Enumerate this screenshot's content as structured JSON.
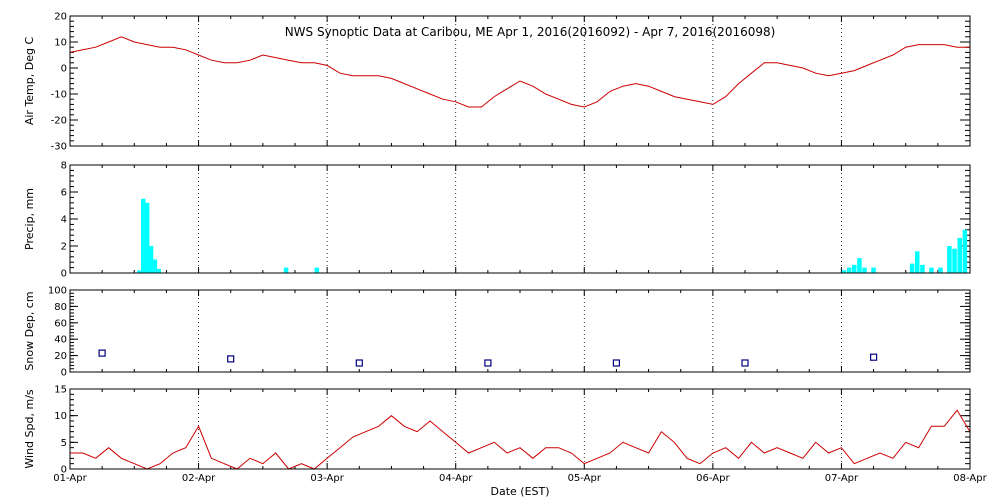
{
  "chart_data": {
    "type": "multi-panel time series",
    "title": "NWS Synoptic Data at Caribou, ME   Apr  1, 2016(2016092) - Apr  7, 2016(2016098)",
    "xlabel": "Date (EST)",
    "x_range_days": [
      0,
      7
    ],
    "x_ticks": [
      "01-Apr",
      "02-Apr",
      "03-Apr",
      "04-Apr",
      "05-Apr",
      "06-Apr",
      "07-Apr",
      "08-Apr"
    ],
    "panels": [
      {
        "key": "temp",
        "type": "line",
        "ylabel": "Air Temp, Deg C",
        "ylim": [
          -30,
          20
        ],
        "yticks": [
          -30,
          -20,
          -10,
          0,
          10,
          20
        ],
        "color": "#cc0000",
        "x": [
          0,
          0.1,
          0.2,
          0.3,
          0.4,
          0.5,
          0.6,
          0.7,
          0.8,
          0.9,
          1.0,
          1.1,
          1.2,
          1.3,
          1.4,
          1.5,
          1.6,
          1.7,
          1.8,
          1.9,
          2.0,
          2.1,
          2.2,
          2.3,
          2.4,
          2.5,
          2.6,
          2.7,
          2.8,
          2.9,
          3.0,
          3.1,
          3.2,
          3.3,
          3.4,
          3.5,
          3.6,
          3.7,
          3.8,
          3.9,
          4.0,
          4.1,
          4.2,
          4.3,
          4.4,
          4.5,
          4.6,
          4.7,
          4.8,
          4.9,
          5.0,
          5.1,
          5.2,
          5.3,
          5.4,
          5.5,
          5.6,
          5.7,
          5.8,
          5.9,
          6.0,
          6.1,
          6.2,
          6.3,
          6.4,
          6.5,
          6.6,
          6.7,
          6.8,
          6.9,
          7.0
        ],
        "values": [
          6,
          7,
          8,
          10,
          12,
          10,
          9,
          8,
          8,
          7,
          5,
          3,
          2,
          2,
          3,
          5,
          4,
          3,
          2,
          2,
          1,
          -2,
          -3,
          -3,
          -3,
          -4,
          -6,
          -8,
          -10,
          -12,
          -13,
          -15,
          -15,
          -11,
          -8,
          -5,
          -7,
          -10,
          -12,
          -14,
          -15,
          -13,
          -9,
          -7,
          -6,
          -7,
          -9,
          -11,
          -12,
          -13,
          -14,
          -11,
          -6,
          -2,
          2,
          2,
          1,
          0,
          -2,
          -3,
          -2,
          -1,
          1,
          3,
          5,
          8,
          9,
          9,
          9,
          8,
          8
        ]
      },
      {
        "key": "precip",
        "type": "bar",
        "ylabel": "Precip, mm",
        "ylim": [
          0,
          8
        ],
        "yticks": [
          0,
          2,
          4,
          6,
          8
        ],
        "color": "#00ffff",
        "bar_width_days": 0.035,
        "x": [
          0.54,
          0.57,
          0.6,
          0.63,
          0.66,
          0.69,
          1.68,
          1.92,
          6.02,
          6.06,
          6.1,
          6.14,
          6.18,
          6.25,
          6.55,
          6.59,
          6.63,
          6.7,
          6.77,
          6.84,
          6.88,
          6.92,
          6.96
        ],
        "values": [
          0.2,
          5.5,
          5.2,
          2.0,
          1.0,
          0.3,
          0.4,
          0.4,
          0.2,
          0.4,
          0.6,
          1.1,
          0.4,
          0.4,
          0.7,
          1.6,
          0.6,
          0.4,
          0.4,
          2.0,
          1.8,
          2.6,
          3.2
        ]
      },
      {
        "key": "snow",
        "type": "scatter",
        "ylabel": "Snow Dep, cm",
        "ylim": [
          0,
          100
        ],
        "yticks": [
          0,
          20,
          40,
          60,
          80,
          100
        ],
        "color": "#000080",
        "x": [
          0.25,
          1.25,
          2.25,
          3.25,
          4.25,
          5.25,
          6.25
        ],
        "values": [
          23,
          16,
          11,
          11,
          11,
          11,
          18
        ]
      },
      {
        "key": "wind",
        "type": "line",
        "ylabel": "Wind Spd, m/s",
        "ylim": [
          0,
          15
        ],
        "yticks": [
          0,
          5,
          10,
          15
        ],
        "color": "#cc0000",
        "x": [
          0,
          0.1,
          0.2,
          0.3,
          0.4,
          0.5,
          0.6,
          0.7,
          0.8,
          0.9,
          1.0,
          1.1,
          1.2,
          1.3,
          1.4,
          1.5,
          1.6,
          1.7,
          1.8,
          1.9,
          2.0,
          2.1,
          2.2,
          2.3,
          2.4,
          2.5,
          2.6,
          2.7,
          2.8,
          2.9,
          3.0,
          3.1,
          3.2,
          3.3,
          3.4,
          3.5,
          3.6,
          3.7,
          3.8,
          3.9,
          4.0,
          4.1,
          4.2,
          4.3,
          4.4,
          4.5,
          4.6,
          4.7,
          4.8,
          4.9,
          5.0,
          5.1,
          5.2,
          5.3,
          5.4,
          5.5,
          5.6,
          5.7,
          5.8,
          5.9,
          6.0,
          6.1,
          6.2,
          6.3,
          6.4,
          6.5,
          6.6,
          6.7,
          6.8,
          6.9,
          7.0
        ],
        "values": [
          3,
          3,
          2,
          4,
          2,
          1,
          0,
          1,
          3,
          4,
          8,
          2,
          1,
          0,
          2,
          1,
          3,
          0,
          1,
          0,
          2,
          4,
          6,
          7,
          8,
          10,
          8,
          7,
          9,
          7,
          5,
          3,
          4,
          5,
          3,
          4,
          2,
          4,
          4,
          3,
          1,
          2,
          3,
          5,
          4,
          3,
          7,
          5,
          2,
          1,
          3,
          4,
          2,
          5,
          3,
          4,
          3,
          2,
          5,
          3,
          4,
          1,
          2,
          3,
          2,
          5,
          4,
          8,
          8,
          11,
          7
        ]
      }
    ]
  }
}
